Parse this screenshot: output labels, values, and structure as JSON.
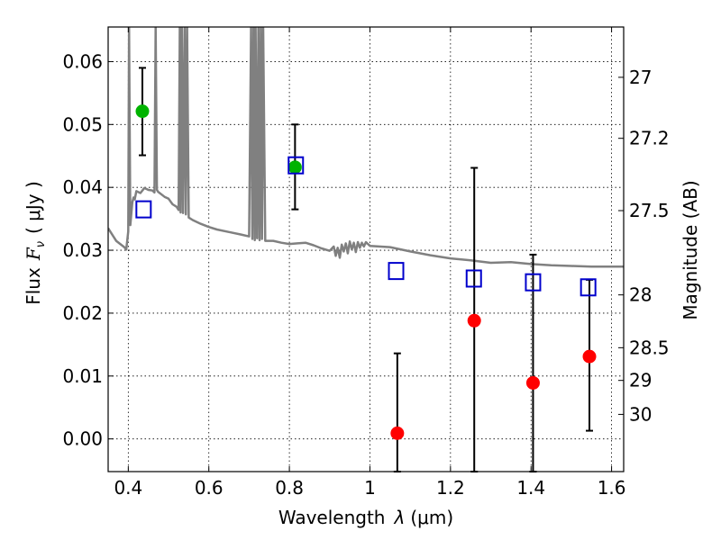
{
  "chart_data": {
    "type": "scatter",
    "xlabel": "Wavelength",
    "xlabel_symbol": "λ",
    "xlabel_unit": "(μm)",
    "ylabel": "Flux",
    "ylabel_symbol": "F",
    "ylabel_subscript": "ν",
    "ylabel_unit": "( μJy )",
    "y2label": "Magnitude (AB)",
    "xlim": [
      0.35,
      1.63
    ],
    "ylim": [
      -0.0052,
      0.0655
    ],
    "grid": true,
    "x_ticks": [
      0.4,
      0.6,
      0.8,
      1.0,
      1.2,
      1.4,
      1.6
    ],
    "x_tick_labels": [
      "0.4",
      "0.6",
      "0.8",
      "1",
      "1.2",
      "1.4",
      "1.6"
    ],
    "y_ticks": [
      0.0,
      0.01,
      0.02,
      0.03,
      0.04,
      0.05,
      0.06
    ],
    "y_tick_labels": [
      "0.00",
      "0.01",
      "0.02",
      "0.03",
      "0.04",
      "0.05",
      "0.06"
    ],
    "y2_ticks": [
      {
        "label": "27",
        "flux": 0.0575
      },
      {
        "label": "27.2",
        "flux": 0.0478
      },
      {
        "label": "27.5",
        "flux": 0.0363
      },
      {
        "label": "28",
        "flux": 0.0229
      },
      {
        "label": "28.5",
        "flux": 0.0145
      },
      {
        "label": "29",
        "flux": 0.0093
      },
      {
        "label": "30",
        "flux": 0.0039
      }
    ],
    "colors": {
      "detected": "#00b300",
      "upper_limit": "#ff0000",
      "model_flux": "#0000cc",
      "sed": "#808080",
      "errorbar": "#000000"
    },
    "series": [
      {
        "name": "detected",
        "x": [
          0.435,
          0.814
        ],
        "y": [
          0.0521,
          0.0432
        ],
        "err_low": [
          0.0451,
          0.0365
        ],
        "err_high": [
          0.059,
          0.05
        ]
      },
      {
        "name": "upper_limit",
        "x": [
          1.068,
          1.259,
          1.405,
          1.545
        ],
        "y": [
          0.0009,
          0.0188,
          0.0089,
          0.0131
        ],
        "err_low": [
          -0.0052,
          -0.0052,
          -0.0052,
          0.0013
        ],
        "err_high": [
          0.0136,
          0.0431,
          0.0293,
          0.0253
        ]
      },
      {
        "name": "model_flux",
        "x": [
          0.438,
          0.816,
          1.065,
          1.258,
          1.405,
          1.542
        ],
        "y": [
          0.0365,
          0.0435,
          0.0267,
          0.0255,
          0.0249,
          0.0241
        ]
      }
    ],
    "sed_curve": {
      "x": [
        0.35,
        0.37,
        0.39,
        0.395,
        0.4,
        0.402,
        0.405,
        0.41,
        0.413,
        0.416,
        0.42,
        0.43,
        0.44,
        0.45,
        0.46,
        0.465,
        0.468,
        0.471,
        0.474,
        0.48,
        0.49,
        0.5,
        0.51,
        0.52,
        0.525,
        0.528,
        0.53,
        0.533,
        0.536,
        0.54,
        0.543,
        0.546,
        0.55,
        0.56,
        0.58,
        0.6,
        0.62,
        0.65,
        0.68,
        0.7,
        0.705,
        0.708,
        0.711,
        0.714,
        0.716,
        0.72,
        0.723,
        0.726,
        0.729,
        0.732,
        0.735,
        0.74,
        0.76,
        0.78,
        0.8,
        0.82,
        0.84,
        0.86,
        0.88,
        0.9,
        0.91,
        0.915,
        0.92,
        0.925,
        0.93,
        0.935,
        0.94,
        0.945,
        0.95,
        0.955,
        0.96,
        0.965,
        0.97,
        0.975,
        0.98,
        0.985,
        0.99,
        1.0,
        1.05,
        1.1,
        1.15,
        1.2,
        1.25,
        1.3,
        1.35,
        1.4,
        1.45,
        1.5,
        1.55,
        1.6,
        1.63
      ],
      "y": [
        0.0335,
        0.0315,
        0.0305,
        0.0301,
        0.033,
        0.0655,
        0.034,
        0.0376,
        0.0384,
        0.0381,
        0.0394,
        0.0391,
        0.0399,
        0.0396,
        0.0395,
        0.0392,
        0.0655,
        0.0396,
        0.0393,
        0.039,
        0.0385,
        0.0382,
        0.0373,
        0.0369,
        0.0364,
        0.0655,
        0.036,
        0.0655,
        0.0359,
        0.0655,
        0.0357,
        0.0655,
        0.0352,
        0.0348,
        0.0342,
        0.0337,
        0.0333,
        0.0329,
        0.0325,
        0.0322,
        0.0655,
        0.0318,
        0.0655,
        0.0316,
        0.0655,
        0.0319,
        0.0655,
        0.0316,
        0.0655,
        0.0318,
        0.0655,
        0.0315,
        0.0315,
        0.0312,
        0.031,
        0.0311,
        0.0312,
        0.0308,
        0.0303,
        0.0299,
        0.0306,
        0.0291,
        0.0304,
        0.0288,
        0.0309,
        0.0298,
        0.0311,
        0.0295,
        0.0314,
        0.0301,
        0.0312,
        0.0297,
        0.0313,
        0.0304,
        0.0312,
        0.0306,
        0.0313,
        0.0307,
        0.0305,
        0.0298,
        0.0292,
        0.0287,
        0.0284,
        0.028,
        0.0281,
        0.0278,
        0.0276,
        0.0275,
        0.0274,
        0.0274,
        0.0274
      ]
    }
  }
}
